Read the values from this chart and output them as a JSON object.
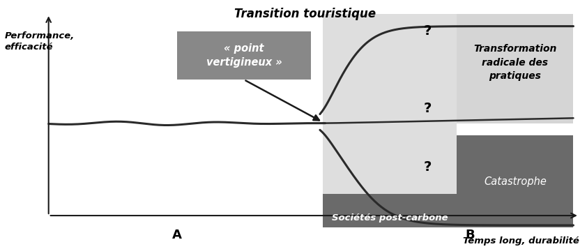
{
  "title": "Transition touristique",
  "xlabel": "Temps long, durabilité",
  "ylabel": "Performance,\nefficacité",
  "label_A": "A",
  "label_B": "B",
  "box_point_vertigineux": "« point\nvertigineux »",
  "box_transformation": "Transformation\nradicale des\npratiques",
  "box_societes": "Sociétés post-carbone",
  "box_catastrophe": "Catastrophe",
  "bg_color": "#ffffff",
  "light_gray": "#c8c8c8",
  "medium_gray": "#aaaaaa",
  "dark_gray": "#6a6a6a",
  "point_box_gray": "#888888",
  "curve_color": "#2a2a2a",
  "axis_color": "#1a1a1a"
}
